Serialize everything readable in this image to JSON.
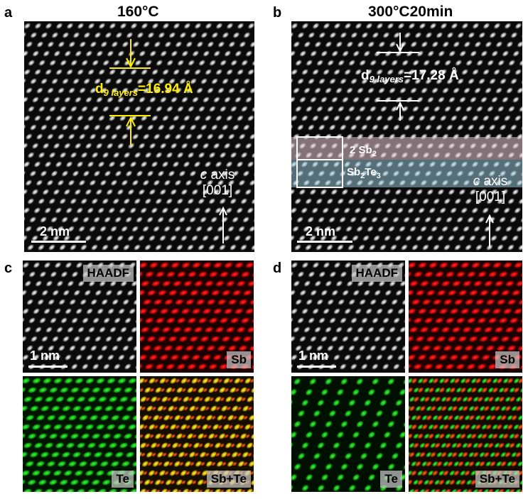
{
  "panel_a": {
    "letter": "a",
    "title": "160°C",
    "d_label": "d",
    "d_sub": "9 layers",
    "d_value": "=16.94 Å",
    "axis_c": "c",
    "axis_word": " axis",
    "axis_index": "[001]",
    "scale": "2 nm",
    "colors": {
      "annotation": "#ffee00"
    }
  },
  "panel_b": {
    "letter": "b",
    "title": "300°C20min",
    "d_label": "d",
    "d_sub": "9 layers",
    "d_value": "=17.28 Å",
    "band_top_label": "2 Sb",
    "band_top_sub": "2",
    "band_bottom_label": "Sb",
    "band_bottom_sub1": "2",
    "band_bottom_mid": "Te",
    "band_bottom_sub2": "3",
    "axis_c": "c",
    "axis_word": " axis",
    "axis_index": "[001]",
    "scale": "2 nm",
    "colors": {
      "band_top": "#e9c9d6",
      "band_bottom": "#9fd2e4"
    }
  },
  "panel_c": {
    "letter": "c",
    "tiles": [
      {
        "tag": "HAADF",
        "color": "#ffffff"
      },
      {
        "tag": "Sb",
        "color": "#ff2020"
      },
      {
        "tag": "Te",
        "color": "#22dd22"
      },
      {
        "tag": "Sb+Te",
        "color": "#e8d820"
      }
    ],
    "scale": "1 nm"
  },
  "panel_d": {
    "letter": "d",
    "tiles": [
      {
        "tag": "HAADF",
        "color": "#ffffff"
      },
      {
        "tag": "Sb",
        "color": "#ff2020"
      },
      {
        "tag": "Te",
        "color": "#22dd22"
      },
      {
        "tag": "Sb+Te",
        "color": "#e8d820"
      }
    ],
    "scale": "1 nm"
  }
}
